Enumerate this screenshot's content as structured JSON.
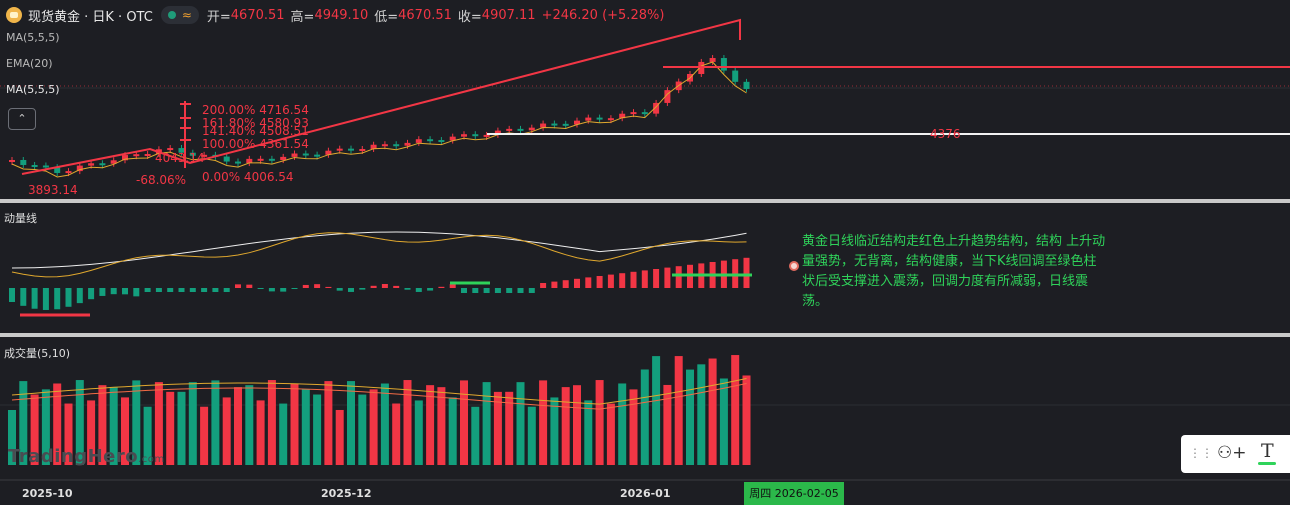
{
  "header": {
    "symbol_title": "现货黄金 · 日K · OTC",
    "wave_glyph": "≈",
    "open_label": "开=",
    "open": "4670.51",
    "high_label": "高=",
    "high": "4949.10",
    "low_label": "低=",
    "low": "4670.51",
    "close_label": "收=",
    "close": "4907.11",
    "change": "+246.20 (+5.28%)"
  },
  "indicators": {
    "ma1": "MA(5,5,5)",
    "ema": "EMA(20)",
    "ma2": "MA(5,5,5)",
    "collapse_glyph": "⌃"
  },
  "price_labels": {
    "fib_200": "200.00% 4716.54",
    "fib_161": "161.80% 4580.93",
    "fib_141": "141.40% 4508.51",
    "fib_100": "100.00% 4361.54",
    "fib_0": "0.00% 4006.54",
    "low_mark": "3893.14",
    "pct_mark": "-68.06%",
    "mid_mark": "4043.14",
    "support": "4376"
  },
  "panes": {
    "momentum_title": "动量线",
    "volume_title": "成交量(5,10)"
  },
  "note": {
    "text": "黄金日线临近结构走红色上升趋势结构，结构 上升动量强势，无背离，结构健康，当下K线回调至绿色柱状后受支撑进入震荡，回调力度有所减弱，日线震荡。"
  },
  "toolbar": {
    "grip": "⋮⋮",
    "add_icon": "⚇+",
    "text_icon": "T"
  },
  "x_axis": {
    "labels": [
      "2025-10",
      "2025-12",
      "2026-01"
    ],
    "cursor": "周四 2026-02-05"
  },
  "watermark": {
    "brand": "TradingHero",
    "suffix": ".com"
  },
  "colors": {
    "up": "#f23645",
    "down": "#139f7d",
    "background": "#1d1e23",
    "accent": "#2bb84a"
  }
}
